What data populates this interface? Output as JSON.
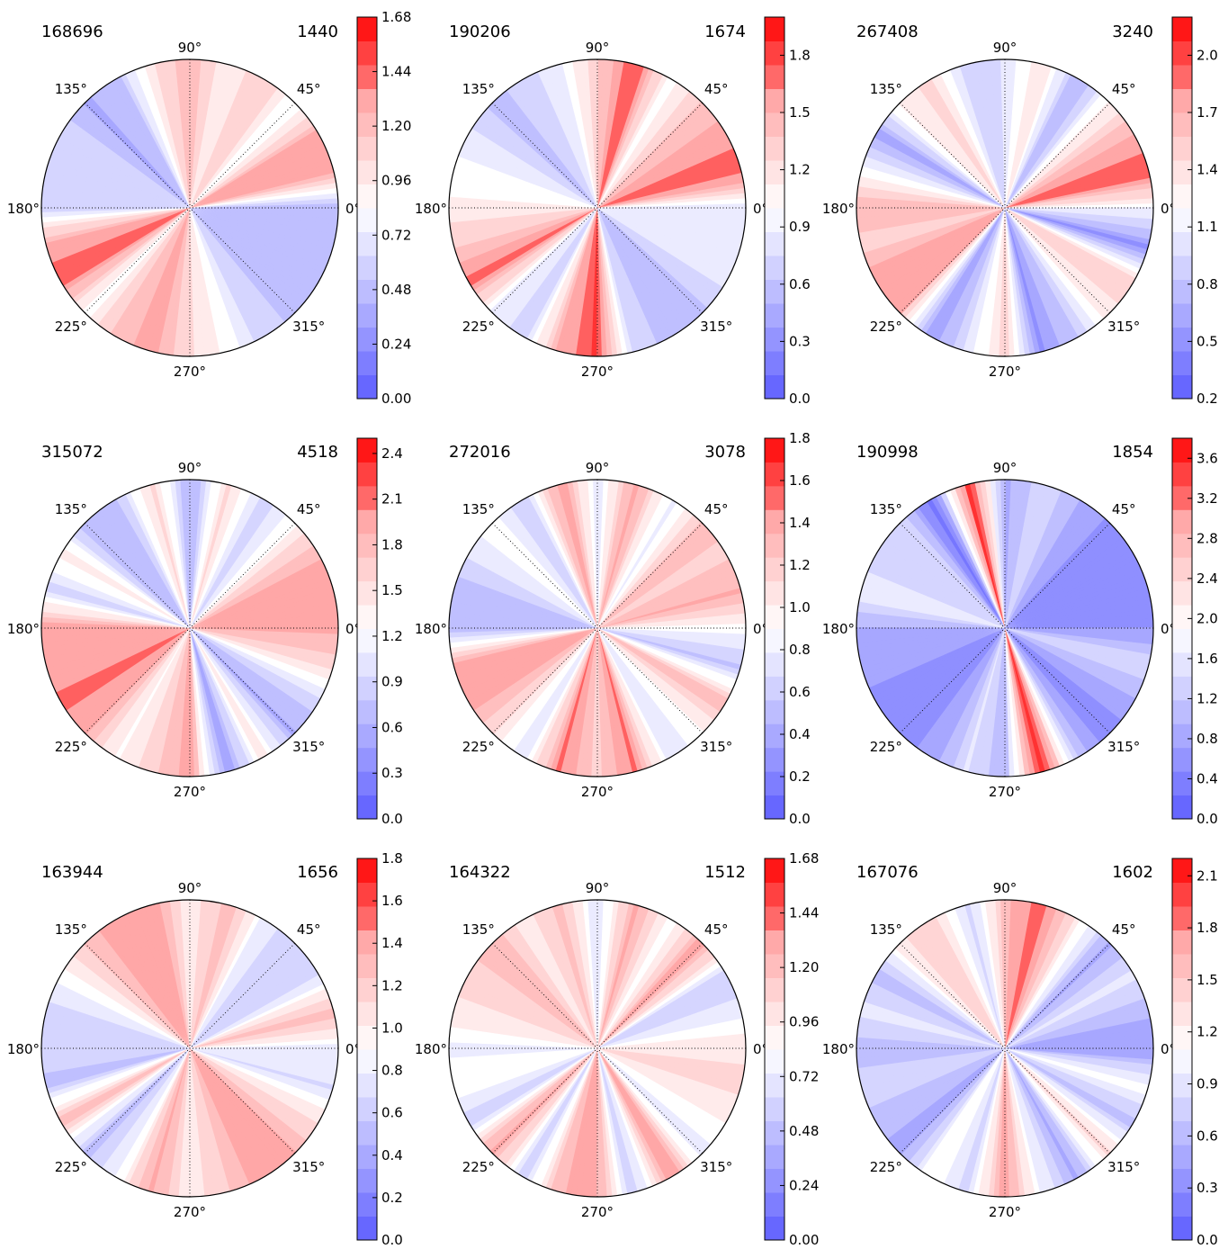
{
  "figure": {
    "colormap": "bwr",
    "colormap_low": "#0000ff",
    "colormap_mid": "#ffffff",
    "colormap_high": "#ff0000",
    "angle_tick_labels": [
      "0°",
      "45°",
      "90°",
      "135°",
      "180°",
      "225°",
      "270°",
      "315°"
    ]
  },
  "chart_data": [
    {
      "type": "heatmap",
      "projection": "polar",
      "title_left": "168696",
      "title_right": "1440",
      "colorbar": {
        "min": 0.0,
        "max": 1.68,
        "ticks": [
          "0.00",
          "0.24",
          "0.48",
          "0.72",
          "0.96",
          "1.20",
          "1.44",
          "1.68"
        ]
      },
      "sector_angles_deg": [
        0,
        15,
        30,
        45,
        60,
        75,
        90,
        105,
        120,
        135,
        150,
        165,
        180,
        195,
        210,
        225,
        240,
        255,
        270,
        285,
        300,
        315,
        330,
        345
      ],
      "sector_values": [
        0.45,
        1.35,
        1.3,
        0.8,
        1.15,
        0.9,
        1.25,
        1.0,
        0.5,
        0.4,
        0.65,
        0.55,
        0.6,
        1.3,
        1.45,
        0.85,
        1.2,
        1.3,
        1.05,
        0.85,
        0.6,
        0.5,
        0.45,
        0.45
      ]
    },
    {
      "type": "heatmap",
      "projection": "polar",
      "title_left": "190206",
      "title_right": "1674",
      "colorbar": {
        "min": 0.0,
        "max": 2.0,
        "ticks": [
          "0.0",
          "0.3",
          "0.6",
          "0.9",
          "1.2",
          "1.5",
          "1.8"
        ]
      },
      "sector_angles_deg": [
        0,
        15,
        30,
        45,
        60,
        75,
        90,
        105,
        120,
        135,
        150,
        165,
        180,
        195,
        210,
        225,
        240,
        255,
        270,
        285,
        300,
        315,
        330,
        345
      ],
      "sector_values": [
        0.85,
        1.75,
        1.55,
        1.4,
        1.0,
        1.75,
        1.35,
        0.9,
        0.7,
        0.6,
        0.8,
        1.0,
        1.1,
        1.35,
        1.7,
        0.9,
        0.7,
        1.5,
        1.85,
        0.75,
        0.55,
        0.6,
        0.8,
        0.9
      ]
    },
    {
      "type": "heatmap",
      "projection": "polar",
      "title_left": "267408",
      "title_right": "3240",
      "colorbar": {
        "min": 0.2,
        "max": 2.2,
        "ticks": [
          "0.2",
          "0.5",
          "0.8",
          "1.1",
          "1.4",
          "1.7",
          "2.0"
        ]
      },
      "sector_angles_deg": [
        0,
        15,
        30,
        45,
        60,
        75,
        90,
        105,
        120,
        135,
        150,
        165,
        180,
        195,
        210,
        225,
        240,
        255,
        270,
        285,
        300,
        315,
        330,
        345
      ],
      "sector_values": [
        1.15,
        1.95,
        1.7,
        1.3,
        0.7,
        1.4,
        1.0,
        0.85,
        1.45,
        1.35,
        0.6,
        1.15,
        1.7,
        1.5,
        1.85,
        1.7,
        0.6,
        1.0,
        1.5,
        0.55,
        0.85,
        1.35,
        1.55,
        0.55
      ]
    },
    {
      "type": "heatmap",
      "projection": "polar",
      "title_left": "315072",
      "title_right": "4518",
      "colorbar": {
        "min": 0.0,
        "max": 2.5,
        "ticks": [
          "0.0",
          "0.3",
          "0.6",
          "0.9",
          "1.2",
          "1.5",
          "1.8",
          "2.1",
          "2.4"
        ]
      },
      "sector_angles_deg": [
        0,
        15,
        30,
        45,
        60,
        75,
        90,
        105,
        120,
        135,
        150,
        165,
        180,
        195,
        210,
        225,
        240,
        255,
        270,
        285,
        300,
        315,
        330,
        345
      ],
      "sector_values": [
        1.9,
        2.05,
        1.85,
        1.3,
        0.9,
        1.6,
        0.6,
        1.6,
        0.8,
        0.7,
        1.4,
        0.9,
        2.0,
        1.9,
        2.1,
        1.9,
        1.3,
        1.6,
        2.0,
        0.5,
        1.4,
        0.6,
        0.9,
        1.6
      ]
    },
    {
      "type": "heatmap",
      "projection": "polar",
      "title_left": "272016",
      "title_right": "3078",
      "colorbar": {
        "min": 0.0,
        "max": 1.8,
        "ticks": [
          "0.0",
          "0.2",
          "0.4",
          "0.6",
          "0.8",
          "1.0",
          "1.2",
          "1.4",
          "1.6",
          "1.8"
        ]
      },
      "sector_angles_deg": [
        0,
        15,
        30,
        45,
        60,
        75,
        90,
        105,
        120,
        135,
        150,
        165,
        180,
        195,
        210,
        225,
        240,
        255,
        270,
        285,
        300,
        315,
        330,
        345
      ],
      "sector_values": [
        0.9,
        1.35,
        1.2,
        1.25,
        0.8,
        1.4,
        0.75,
        1.45,
        0.6,
        0.9,
        0.75,
        0.5,
        0.5,
        1.35,
        1.45,
        1.1,
        0.75,
        1.5,
        1.2,
        1.5,
        0.7,
        0.95,
        1.3,
        0.55
      ]
    },
    {
      "type": "heatmap",
      "projection": "polar",
      "title_left": "190998",
      "title_right": "1854",
      "colorbar": {
        "min": 0.0,
        "max": 3.8,
        "ticks": [
          "0.0",
          "0.4",
          "0.8",
          "1.2",
          "1.6",
          "2.0",
          "2.4",
          "2.8",
          "3.2",
          "3.6"
        ]
      },
      "sector_angles_deg": [
        0,
        15,
        30,
        45,
        60,
        75,
        90,
        105,
        120,
        135,
        150,
        165,
        180,
        195,
        210,
        225,
        240,
        255,
        270,
        285,
        300,
        315,
        330,
        345
      ],
      "sector_values": [
        0.65,
        0.55,
        0.5,
        0.6,
        0.95,
        1.45,
        0.85,
        3.5,
        0.3,
        1.4,
        1.25,
        1.75,
        0.95,
        0.8,
        0.6,
        0.45,
        0.8,
        1.5,
        1.05,
        3.6,
        1.1,
        0.5,
        0.85,
        1.45
      ]
    },
    {
      "type": "heatmap",
      "projection": "polar",
      "title_left": "163944",
      "title_right": "1656",
      "colorbar": {
        "min": 0.0,
        "max": 1.8,
        "ticks": [
          "0.0",
          "0.2",
          "0.4",
          "0.6",
          "0.8",
          "1.0",
          "1.2",
          "1.4",
          "1.6",
          "1.8"
        ]
      },
      "sector_angles_deg": [
        0,
        15,
        30,
        45,
        60,
        75,
        90,
        105,
        120,
        135,
        150,
        165,
        180,
        195,
        210,
        225,
        240,
        255,
        270,
        285,
        300,
        315,
        330,
        345
      ],
      "sector_values": [
        0.8,
        1.3,
        0.7,
        0.6,
        0.8,
        1.3,
        1.0,
        1.45,
        1.45,
        1.25,
        0.9,
        0.65,
        0.65,
        0.55,
        1.3,
        0.5,
        0.85,
        1.4,
        1.0,
        1.2,
        1.45,
        1.35,
        1.1,
        0.7
      ]
    },
    {
      "type": "heatmap",
      "projection": "polar",
      "title_left": "164322",
      "title_right": "1512",
      "colorbar": {
        "min": 0.0,
        "max": 1.68,
        "ticks": [
          "0.00",
          "0.24",
          "0.48",
          "0.72",
          "0.96",
          "1.20",
          "1.44",
          "1.68"
        ]
      },
      "sector_angles_deg": [
        0,
        15,
        30,
        45,
        60,
        75,
        90,
        105,
        120,
        135,
        150,
        165,
        180,
        195,
        210,
        225,
        240,
        255,
        270,
        285,
        300,
        315,
        330,
        345
      ],
      "sector_values": [
        1.0,
        0.7,
        0.55,
        1.35,
        0.8,
        1.3,
        0.65,
        1.2,
        0.95,
        1.25,
        1.05,
        1.0,
        0.75,
        0.85,
        0.6,
        1.35,
        0.55,
        1.25,
        1.3,
        0.55,
        1.4,
        0.7,
        0.9,
        1.05
      ]
    },
    {
      "type": "heatmap",
      "projection": "polar",
      "title_left": "167076",
      "title_right": "1602",
      "colorbar": {
        "min": 0.0,
        "max": 2.2,
        "ticks": [
          "0.0",
          "0.3",
          "0.6",
          "0.9",
          "1.2",
          "1.5",
          "1.8",
          "2.1"
        ]
      },
      "sector_angles_deg": [
        0,
        15,
        30,
        45,
        60,
        75,
        90,
        105,
        120,
        135,
        150,
        165,
        180,
        195,
        210,
        225,
        240,
        255,
        270,
        285,
        300,
        315,
        330,
        345
      ],
      "sector_values": [
        0.4,
        0.6,
        0.9,
        0.5,
        1.2,
        1.9,
        1.6,
        0.8,
        1.45,
        1.3,
        0.6,
        0.95,
        0.6,
        0.8,
        0.65,
        0.45,
        1.2,
        0.8,
        1.75,
        1.0,
        0.5,
        1.4,
        0.65,
        1.1
      ]
    }
  ]
}
